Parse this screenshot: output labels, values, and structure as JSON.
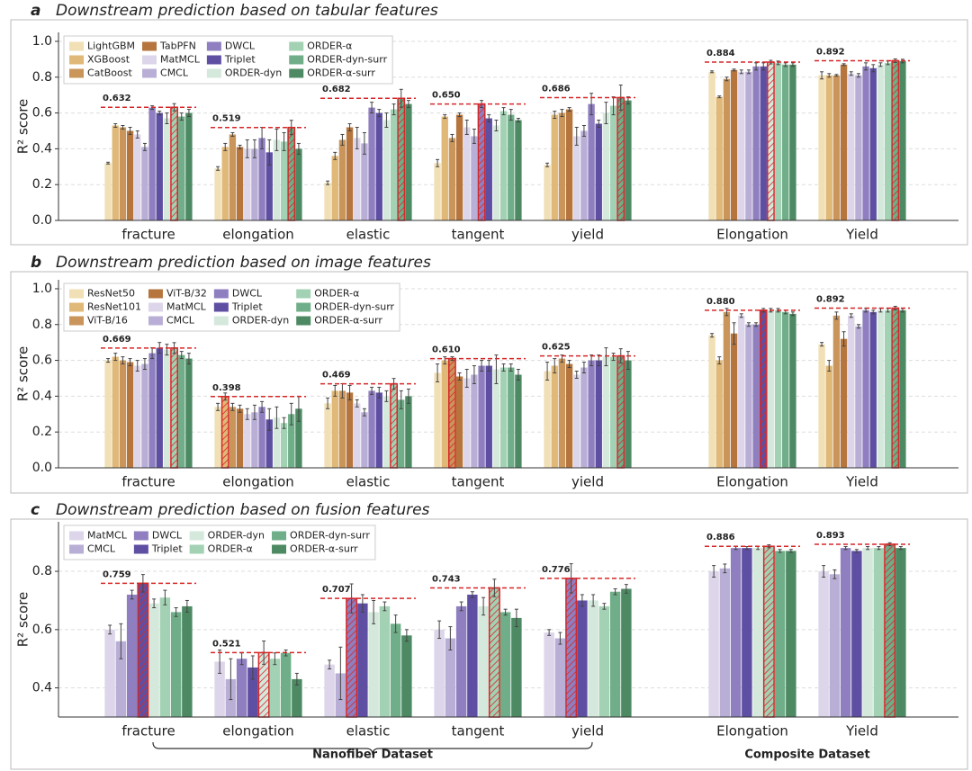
{
  "chart_data": [
    {
      "type": "bar",
      "label": "a",
      "title": "Downstream prediction based on tabular features",
      "ylabel": "R² score",
      "categories": [
        "fracture",
        "elongation",
        "elastic",
        "tangent",
        "yield",
        "Elongation",
        "Yield"
      ],
      "series": [
        {
          "name": "LightGBM",
          "color": "#f1dfb5",
          "values": [
            0.32,
            0.29,
            0.21,
            0.32,
            0.31,
            0.83,
            0.81
          ],
          "errors": [
            0.005,
            0.01,
            0.01,
            0.02,
            0.01,
            0.005,
            0.02
          ]
        },
        {
          "name": "XGBoost",
          "color": "#e0b877",
          "values": [
            0.53,
            0.41,
            0.36,
            0.58,
            0.59,
            0.69,
            0.81
          ],
          "errors": [
            0.01,
            0.02,
            0.02,
            0.01,
            0.02,
            0.005,
            0.01
          ]
        },
        {
          "name": "CatBoost",
          "color": "#c9955a",
          "values": [
            0.52,
            0.48,
            0.45,
            0.46,
            0.6,
            0.79,
            0.81
          ],
          "errors": [
            0.01,
            0.01,
            0.03,
            0.02,
            0.02,
            0.01,
            0.005
          ]
        },
        {
          "name": "TabPFN",
          "color": "#b5753d",
          "values": [
            0.5,
            0.41,
            0.52,
            0.59,
            0.62,
            0.84,
            0.87
          ],
          "errors": [
            0.02,
            0.01,
            0.02,
            0.01,
            0.01,
            0.005,
            0.005
          ]
        },
        {
          "name": "MatMCL",
          "color": "#ddd5ea",
          "values": [
            0.48,
            0.4,
            0.46,
            0.52,
            0.47,
            0.83,
            0.82
          ],
          "errors": [
            0.02,
            0.05,
            0.06,
            0.04,
            0.05,
            0.01,
            0.01
          ]
        },
        {
          "name": "CMCL",
          "color": "#b9afd6",
          "values": [
            0.41,
            0.4,
            0.43,
            0.47,
            0.5,
            0.83,
            0.81
          ],
          "errors": [
            0.02,
            0.05,
            0.06,
            0.04,
            0.03,
            0.01,
            0.01
          ]
        },
        {
          "name": "DWCL",
          "color": "#8f7fc0",
          "values": [
            0.63,
            0.46,
            0.63,
            0.65,
            0.65,
            0.86,
            0.86
          ],
          "errors": [
            0.01,
            0.06,
            0.03,
            0.02,
            0.06,
            0.02,
            0.02
          ]
        },
        {
          "name": "Triplet",
          "color": "#5e4fa2",
          "values": [
            0.6,
            0.38,
            0.6,
            0.57,
            0.54,
            0.86,
            0.85
          ],
          "errors": [
            0.01,
            0.07,
            0.02,
            0.02,
            0.02,
            0.02,
            0.02
          ]
        },
        {
          "name": "ORDER-dyn",
          "color": "#d5e8dc",
          "values": [
            0.57,
            0.45,
            0.56,
            0.53,
            0.6,
            0.884,
            0.87
          ],
          "errors": [
            0.03,
            0.06,
            0.04,
            0.03,
            0.06,
            0.01,
            0.01
          ]
        },
        {
          "name": "ORDER-α",
          "color": "#a3d1b4",
          "values": [
            0.632,
            0.44,
            0.62,
            0.61,
            0.64,
            0.88,
            0.88
          ],
          "errors": [
            0.02,
            0.05,
            0.03,
            0.02,
            0.05,
            0.01,
            0.01
          ]
        },
        {
          "name": "ORDER-dyn-surr",
          "color": "#6fae88",
          "values": [
            0.58,
            0.519,
            0.682,
            0.59,
            0.686,
            0.87,
            0.892
          ],
          "errors": [
            0.02,
            0.04,
            0.05,
            0.03,
            0.07,
            0.01,
            0.01
          ]
        },
        {
          "name": "ORDER-α-surr",
          "color": "#4d8a63",
          "values": [
            0.6,
            0.4,
            0.65,
            0.56,
            0.67,
            0.87,
            0.89
          ],
          "errors": [
            0.02,
            0.03,
            0.02,
            0.01,
            0.02,
            0.01,
            0.01
          ]
        }
      ],
      "best": [
        0.632,
        0.519,
        0.682,
        0.65,
        0.686,
        0.884,
        0.892
      ],
      "ylim": [
        0,
        1.05
      ],
      "yticks": [
        0.0,
        0.2,
        0.4,
        0.6,
        0.8,
        1.0
      ],
      "grid": true,
      "legend": "upper left"
    },
    {
      "type": "bar",
      "label": "b",
      "title": "Downstream prediction based on image features",
      "ylabel": "R² score",
      "categories": [
        "fracture",
        "elongation",
        "elastic",
        "tangent",
        "yield",
        "Elongation",
        "Yield"
      ],
      "series": [
        {
          "name": "ResNet50",
          "color": "#f1dfb5",
          "values": [
            0.6,
            0.34,
            0.36,
            0.53,
            0.54,
            0.74,
            0.69
          ],
          "errors": [
            0.01,
            0.02,
            0.03,
            0.05,
            0.05,
            0.01,
            0.01
          ]
        },
        {
          "name": "ResNet101",
          "color": "#e0b877",
          "values": [
            0.62,
            0.398,
            0.43,
            0.6,
            0.57,
            0.6,
            0.57
          ],
          "errors": [
            0.02,
            0.02,
            0.03,
            0.02,
            0.04,
            0.02,
            0.03
          ]
        },
        {
          "name": "ViT-B/16",
          "color": "#c9955a",
          "values": [
            0.6,
            0.34,
            0.43,
            0.61,
            0.61,
            0.87,
            0.85
          ],
          "errors": [
            0.02,
            0.02,
            0.04,
            0.01,
            0.02,
            0.02,
            0.02
          ]
        },
        {
          "name": "ViT-B/32",
          "color": "#b5753d",
          "values": [
            0.59,
            0.33,
            0.42,
            0.51,
            0.58,
            0.75,
            0.72
          ],
          "errors": [
            0.02,
            0.02,
            0.04,
            0.02,
            0.02,
            0.06,
            0.04
          ]
        },
        {
          "name": "MatMCL",
          "color": "#ddd5ea",
          "values": [
            0.57,
            0.3,
            0.36,
            0.5,
            0.52,
            0.85,
            0.85
          ],
          "errors": [
            0.03,
            0.03,
            0.02,
            0.05,
            0.02,
            0.01,
            0.01
          ]
        },
        {
          "name": "CMCL",
          "color": "#b9afd6",
          "values": [
            0.58,
            0.31,
            0.31,
            0.52,
            0.56,
            0.8,
            0.79
          ],
          "errors": [
            0.03,
            0.04,
            0.02,
            0.05,
            0.03,
            0.01,
            0.01
          ]
        },
        {
          "name": "DWCL",
          "color": "#8f7fc0",
          "values": [
            0.64,
            0.34,
            0.43,
            0.57,
            0.6,
            0.8,
            0.88
          ],
          "errors": [
            0.03,
            0.03,
            0.02,
            0.03,
            0.03,
            0.01,
            0.01
          ]
        },
        {
          "name": "Triplet",
          "color": "#5e4fa2",
          "values": [
            0.67,
            0.27,
            0.42,
            0.57,
            0.6,
            0.88,
            0.87
          ],
          "errors": [
            0.03,
            0.06,
            0.03,
            0.03,
            0.03,
            0.01,
            0.01
          ]
        },
        {
          "name": "ORDER-dyn",
          "color": "#d5e8dc",
          "values": [
            0.66,
            0.28,
            0.4,
            0.55,
            0.62,
            0.88,
            0.88
          ],
          "errors": [
            0.03,
            0.06,
            0.03,
            0.08,
            0.05,
            0.01,
            0.01
          ]
        },
        {
          "name": "ORDER-α",
          "color": "#a3d1b4",
          "values": [
            0.669,
            0.25,
            0.469,
            0.56,
            0.62,
            0.88,
            0.88
          ],
          "errors": [
            0.03,
            0.03,
            0.03,
            0.02,
            0.02,
            0.01,
            0.01
          ]
        },
        {
          "name": "ORDER-dyn-surr",
          "color": "#6fae88",
          "values": [
            0.63,
            0.3,
            0.38,
            0.56,
            0.625,
            0.87,
            0.892
          ],
          "errors": [
            0.02,
            0.06,
            0.05,
            0.02,
            0.04,
            0.01,
            0.01
          ]
        },
        {
          "name": "ORDER-α-surr",
          "color": "#4d8a63",
          "values": [
            0.61,
            0.33,
            0.4,
            0.52,
            0.6,
            0.86,
            0.88
          ],
          "errors": [
            0.03,
            0.07,
            0.04,
            0.03,
            0.05,
            0.01,
            0.01
          ]
        }
      ],
      "best": [
        0.669,
        0.398,
        0.469,
        0.61,
        0.625,
        0.88,
        0.892
      ],
      "ylim": [
        0,
        1.05
      ],
      "yticks": [
        0.0,
        0.2,
        0.4,
        0.6,
        0.8,
        1.0
      ],
      "grid": true,
      "legend": "upper left"
    },
    {
      "type": "bar",
      "label": "c",
      "title": "Downstream prediction based on fusion features",
      "ylabel": "R² score",
      "categories": [
        "fracture",
        "elongation",
        "elastic",
        "tangent",
        "yield",
        "Elongation",
        "Yield"
      ],
      "series": [
        {
          "name": "MatMCL",
          "color": "#ddd5ea",
          "values": [
            0.6,
            0.49,
            0.48,
            0.6,
            0.59,
            0.8,
            0.8
          ],
          "errors": [
            0.015,
            0.04,
            0.015,
            0.03,
            0.01,
            0.02,
            0.02
          ]
        },
        {
          "name": "CMCL",
          "color": "#b9afd6",
          "values": [
            0.56,
            0.43,
            0.45,
            0.57,
            0.57,
            0.81,
            0.79
          ],
          "errors": [
            0.06,
            0.07,
            0.09,
            0.04,
            0.02,
            0.015,
            0.015
          ]
        },
        {
          "name": "DWCL",
          "color": "#8f7fc0",
          "values": [
            0.72,
            0.5,
            0.707,
            0.68,
            0.776,
            0.88,
            0.88
          ],
          "errors": [
            0.015,
            0.02,
            0.05,
            0.015,
            0.05,
            0.005,
            0.005
          ]
        },
        {
          "name": "Triplet",
          "color": "#5e4fa2",
          "values": [
            0.759,
            0.47,
            0.69,
            0.72,
            0.7,
            0.88,
            0.87
          ],
          "errors": [
            0.03,
            0.04,
            0.03,
            0.01,
            0.02,
            0.005,
            0.005
          ]
        },
        {
          "name": "ORDER-dyn",
          "color": "#d5e8dc",
          "values": [
            0.69,
            0.521,
            0.66,
            0.68,
            0.7,
            0.88,
            0.88
          ],
          "errors": [
            0.015,
            0.04,
            0.04,
            0.03,
            0.02,
            0.005,
            0.005
          ]
        },
        {
          "name": "ORDER-α",
          "color": "#a3d1b4",
          "values": [
            0.71,
            0.5,
            0.68,
            0.743,
            0.68,
            0.886,
            0.88
          ],
          "errors": [
            0.025,
            0.02,
            0.015,
            0.03,
            0.01,
            0.005,
            0.005
          ]
        },
        {
          "name": "ORDER-dyn-surr",
          "color": "#6fae88",
          "values": [
            0.66,
            0.52,
            0.62,
            0.66,
            0.73,
            0.87,
            0.893
          ],
          "errors": [
            0.015,
            0.01,
            0.03,
            0.01,
            0.01,
            0.005,
            0.005
          ]
        },
        {
          "name": "ORDER-α-surr",
          "color": "#4d8a63",
          "values": [
            0.68,
            0.43,
            0.58,
            0.64,
            0.74,
            0.87,
            0.88
          ],
          "errors": [
            0.02,
            0.02,
            0.02,
            0.03,
            0.015,
            0.005,
            0.005
          ]
        }
      ],
      "best": [
        0.759,
        0.521,
        0.707,
        0.743,
        0.776,
        0.886,
        0.893
      ],
      "ylim": [
        0.3,
        0.97
      ],
      "yticks": [
        0.4,
        0.6,
        0.8
      ],
      "grid": true,
      "legend": "upper left",
      "annotations": [
        "Nanofiber Dataset",
        "Composite Dataset"
      ]
    }
  ]
}
